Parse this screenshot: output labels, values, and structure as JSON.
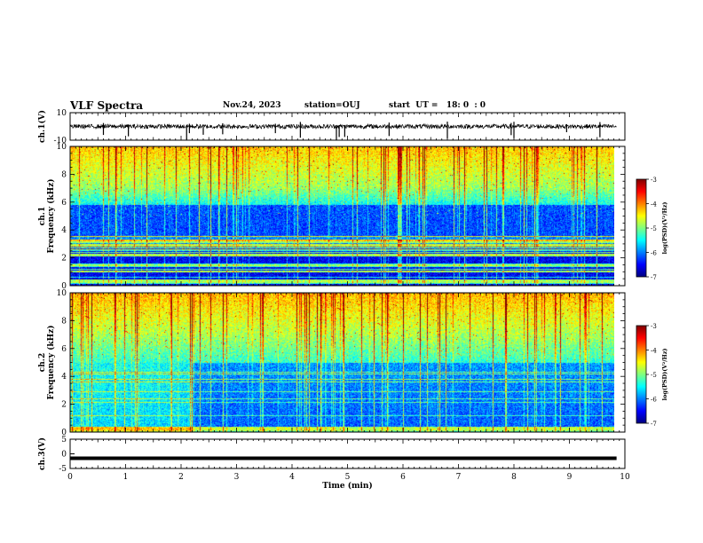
{
  "header": {
    "title": "VLF Spectra",
    "date": "Nov.24, 2023",
    "station": "station=OUJ",
    "start_ut": "start  UT =   18: 0  : 0"
  },
  "chart_data": [
    {
      "type": "line",
      "panel": "ch1-waveform",
      "ylabel": "ch.1(V)",
      "ylim": [
        -10,
        10
      ],
      "y_ticks": [
        "10",
        "-10"
      ],
      "xlim": [
        0,
        10
      ],
      "baseline": 0,
      "spikes_min": [
        0.6,
        1.05,
        2.1,
        2.15,
        2.4,
        2.75,
        3.7,
        4.15,
        4.8,
        4.85,
        4.95,
        5.75,
        6.8,
        7.95,
        8.0,
        8.95,
        9.55
      ]
    },
    {
      "type": "heatmap",
      "panel": "ch1-spectrogram",
      "ylabel_top": "ch.1",
      "ylabel": "Frequency (kHz)",
      "xlim": [
        0,
        10
      ],
      "ylim": [
        0,
        10
      ],
      "y_ticks": [
        "0",
        "2",
        "4",
        "6",
        "8",
        "10"
      ],
      "data_end_min": 9.8,
      "colorbar": {
        "label": "log(PSD)(V²/Hz)",
        "range": [
          -7,
          -3
        ],
        "ticks": [
          "-3",
          "-4",
          "-5",
          "-6",
          "-7"
        ]
      }
    },
    {
      "type": "heatmap",
      "panel": "ch2-spectrogram",
      "ylabel_top": "ch.2",
      "ylabel": "Frequency (kHz)",
      "xlim": [
        0,
        10
      ],
      "ylim": [
        0,
        10
      ],
      "y_ticks": [
        "0",
        "2",
        "4",
        "6",
        "8",
        "10"
      ],
      "data_end_min": 9.8,
      "colorbar": {
        "label": "log(PSD)(V²/Hz)",
        "range": [
          -7,
          -3
        ],
        "ticks": [
          "-3",
          "-4",
          "-5",
          "-6",
          "-7"
        ]
      }
    },
    {
      "type": "line",
      "panel": "ch3-waveform",
      "ylabel": "ch.3(V)",
      "ylim": [
        -5,
        5
      ],
      "y_ticks": [
        "5",
        "0",
        "-5"
      ],
      "xlim": [
        0,
        10
      ],
      "value": -1.5,
      "xlabel": "Time (min)",
      "x_ticks": [
        "0",
        "1",
        "2",
        "3",
        "4",
        "5",
        "6",
        "7",
        "8",
        "9",
        "10"
      ]
    }
  ],
  "colors": {
    "colormap": [
      "#00007f",
      "#0000ff",
      "#007fff",
      "#00ffff",
      "#7fff7f",
      "#ffff00",
      "#ff7f00",
      "#ff0000",
      "#7f0000"
    ],
    "axis": "#000000",
    "waveform": "#000000"
  }
}
